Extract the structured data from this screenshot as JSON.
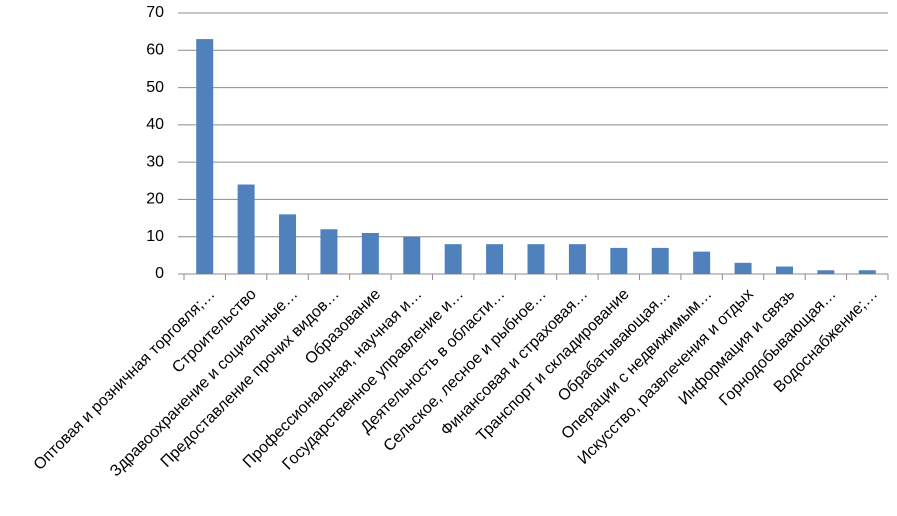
{
  "chart_data": {
    "type": "bar",
    "categories": [
      "Оптовая и розничная торговля;…",
      "Строительство",
      "Здравоохранение и социальные…",
      "Предоставление прочих видов…",
      "Образование",
      "Профессиональная, научная и…",
      "Государственное управление и…",
      "Деятельность в области…",
      "Сельское, лесное и рыбное…",
      "Финансовая и страховая…",
      "Транспорт и складирование",
      "Обрабатывающая…",
      "Операции с недвижимым…",
      "Искусство, развлечения и отдых",
      "Информация и связь",
      "Горнодобывающая…",
      "Водоснабжение;…"
    ],
    "values": [
      63,
      24,
      16,
      12,
      11,
      10,
      8,
      8,
      8,
      8,
      7,
      7,
      6,
      3,
      2,
      1,
      1
    ],
    "color": "#4f81bd",
    "ylim": [
      0,
      70
    ],
    "yticks": [
      0,
      10,
      20,
      30,
      40,
      50,
      60,
      70
    ],
    "grid": true
  }
}
